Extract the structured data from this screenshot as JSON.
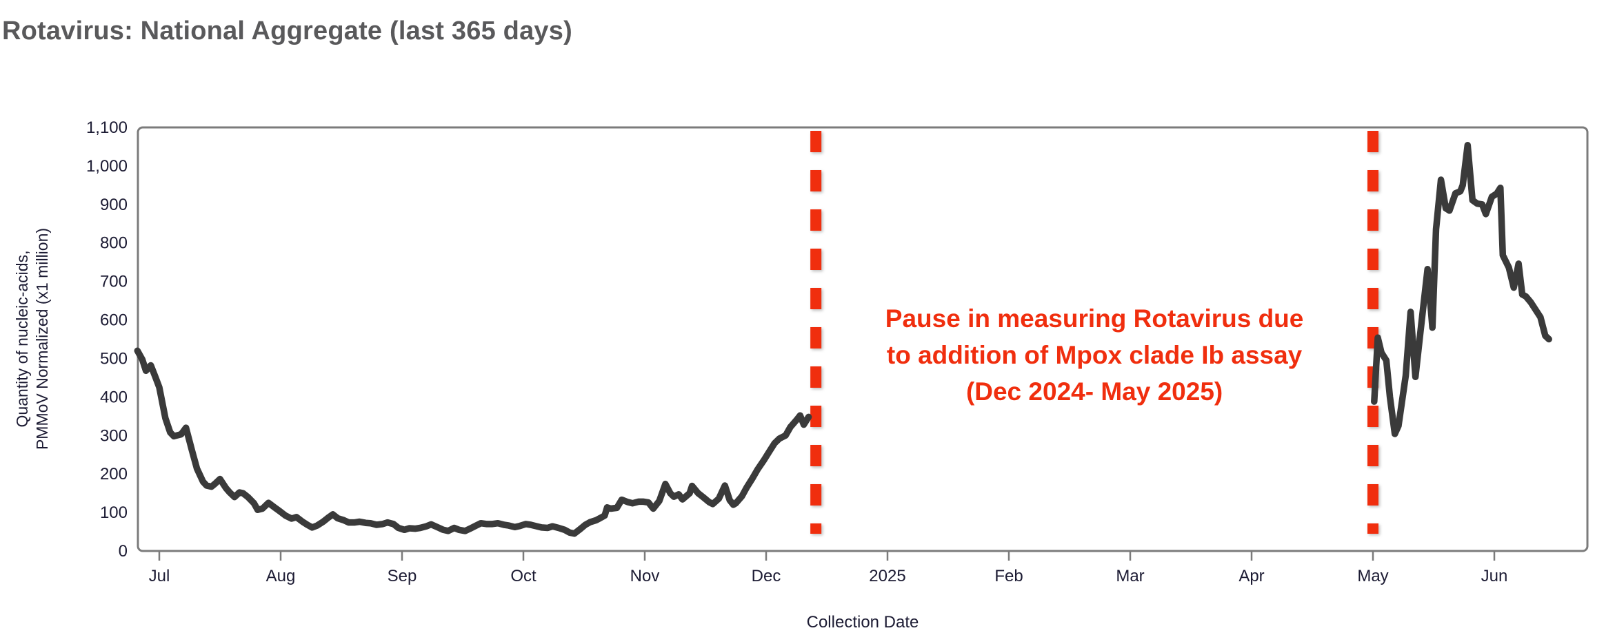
{
  "title": "Rotavirus: National Aggregate (last 365 days)",
  "chart_data": {
    "type": "line",
    "title": "Rotavirus: National Aggregate (last 365 days)",
    "xlabel": "Collection Date",
    "ylabel": "Quantity of nucleic-acids,\nPMMoV Normalized (x1 million)",
    "x_unit": "month index along axis, 0 = Jul 2024 tick, 11 = Jun 2025 tick",
    "ylim": [
      0,
      1100
    ],
    "grid": false,
    "legend": "none",
    "line_color": "#3a3a3a",
    "frame_color": "#7b7b7b",
    "tick_text_color": "#1c1b33",
    "title_color": "#59595b",
    "yticks": {
      "values": [
        0,
        100,
        200,
        300,
        400,
        500,
        600,
        700,
        800,
        900,
        1000,
        1100
      ],
      "labels": [
        "0",
        "100",
        "200",
        "300",
        "400",
        "500",
        "600",
        "700",
        "800",
        "900",
        "1,000",
        "1,100"
      ]
    },
    "xticks": {
      "labels": [
        "Jul",
        "Aug",
        "Sep",
        "Oct",
        "Nov",
        "Dec",
        "2025",
        "Feb",
        "Mar",
        "Apr",
        "May",
        "Jun"
      ]
    },
    "series": [
      {
        "name": "Rotavirus national aggregate",
        "segments": [
          [
            [
              -0.18,
              520
            ],
            [
              -0.14,
              497
            ],
            [
              -0.11,
              468
            ],
            [
              -0.07,
              482
            ],
            [
              -0.03,
              450
            ],
            [
              0.0,
              425
            ],
            [
              0.05,
              345
            ],
            [
              0.09,
              308
            ],
            [
              0.12,
              298
            ],
            [
              0.18,
              303
            ],
            [
              0.22,
              320
            ],
            [
              0.27,
              260
            ],
            [
              0.31,
              214
            ],
            [
              0.36,
              180
            ],
            [
              0.39,
              170
            ],
            [
              0.43,
              167
            ],
            [
              0.46,
              175
            ],
            [
              0.5,
              187
            ],
            [
              0.55,
              163
            ],
            [
              0.58,
              152
            ],
            [
              0.62,
              140
            ],
            [
              0.66,
              152
            ],
            [
              0.69,
              150
            ],
            [
              0.73,
              140
            ],
            [
              0.78,
              124
            ],
            [
              0.81,
              107
            ],
            [
              0.85,
              110
            ],
            [
              0.9,
              125
            ],
            [
              0.95,
              113
            ],
            [
              0.99,
              104
            ],
            [
              1.04,
              92
            ],
            [
              1.09,
              84
            ],
            [
              1.13,
              88
            ],
            [
              1.18,
              76
            ],
            [
              1.22,
              68
            ],
            [
              1.26,
              61
            ],
            [
              1.3,
              66
            ],
            [
              1.35,
              76
            ],
            [
              1.39,
              86
            ],
            [
              1.43,
              95
            ],
            [
              1.47,
              85
            ],
            [
              1.52,
              80
            ],
            [
              1.56,
              74
            ],
            [
              1.61,
              74
            ],
            [
              1.65,
              76
            ],
            [
              1.7,
              73
            ],
            [
              1.74,
              72
            ],
            [
              1.79,
              68
            ],
            [
              1.84,
              70
            ],
            [
              1.88,
              74
            ],
            [
              1.93,
              70
            ],
            [
              1.97,
              60
            ],
            [
              2.02,
              55
            ],
            [
              2.06,
              59
            ],
            [
              2.11,
              58
            ],
            [
              2.15,
              60
            ],
            [
              2.2,
              64
            ],
            [
              2.24,
              69
            ],
            [
              2.29,
              62
            ],
            [
              2.34,
              55
            ],
            [
              2.38,
              52
            ],
            [
              2.43,
              60
            ],
            [
              2.47,
              55
            ],
            [
              2.52,
              52
            ],
            [
              2.56,
              58
            ],
            [
              2.61,
              66
            ],
            [
              2.65,
              72
            ],
            [
              2.7,
              70
            ],
            [
              2.74,
              70
            ],
            [
              2.79,
              72
            ],
            [
              2.84,
              68
            ],
            [
              2.88,
              66
            ],
            [
              2.93,
              62
            ],
            [
              2.97,
              65
            ],
            [
              3.02,
              70
            ],
            [
              3.06,
              68
            ],
            [
              3.11,
              64
            ],
            [
              3.15,
              61
            ],
            [
              3.2,
              60
            ],
            [
              3.24,
              64
            ],
            [
              3.29,
              60
            ],
            [
              3.34,
              55
            ],
            [
              3.38,
              48
            ],
            [
              3.42,
              45
            ],
            [
              3.46,
              55
            ],
            [
              3.51,
              68
            ],
            [
              3.55,
              75
            ],
            [
              3.6,
              80
            ],
            [
              3.63,
              85
            ],
            [
              3.67,
              92
            ],
            [
              3.69,
              113
            ],
            [
              3.72,
              110
            ],
            [
              3.77,
              112
            ],
            [
              3.81,
              133
            ],
            [
              3.86,
              127
            ],
            [
              3.9,
              124
            ],
            [
              3.95,
              128
            ],
            [
              3.99,
              128
            ],
            [
              4.03,
              126
            ],
            [
              4.07,
              110
            ],
            [
              4.12,
              130
            ],
            [
              4.17,
              174
            ],
            [
              4.21,
              150
            ],
            [
              4.24,
              141
            ],
            [
              4.28,
              147
            ],
            [
              4.31,
              134
            ],
            [
              4.37,
              150
            ],
            [
              4.39,
              169
            ],
            [
              4.44,
              150
            ],
            [
              4.48,
              140
            ],
            [
              4.53,
              127
            ],
            [
              4.56,
              122
            ],
            [
              4.61,
              136
            ],
            [
              4.66,
              170
            ],
            [
              4.7,
              132
            ],
            [
              4.73,
              120
            ],
            [
              4.75,
              124
            ],
            [
              4.8,
              142
            ],
            [
              4.84,
              165
            ],
            [
              4.89,
              190
            ],
            [
              4.93,
              212
            ],
            [
              4.98,
              235
            ],
            [
              5.02,
              255
            ],
            [
              5.07,
              280
            ],
            [
              5.11,
              292
            ],
            [
              5.16,
              300
            ],
            [
              5.2,
              322
            ],
            [
              5.25,
              340
            ],
            [
              5.28,
              352
            ],
            [
              5.31,
              328
            ],
            [
              5.35,
              348
            ]
          ],
          [
            [
              10.01,
              388
            ],
            [
              10.04,
              554
            ],
            [
              10.07,
              515
            ],
            [
              10.11,
              495
            ],
            [
              10.14,
              400
            ],
            [
              10.18,
              304
            ],
            [
              10.21,
              325
            ],
            [
              10.27,
              455
            ],
            [
              10.31,
              621
            ],
            [
              10.35,
              452
            ],
            [
              10.39,
              565
            ],
            [
              10.45,
              732
            ],
            [
              10.49,
              580
            ],
            [
              10.52,
              836
            ],
            [
              10.56,
              964
            ],
            [
              10.6,
              890
            ],
            [
              10.63,
              884
            ],
            [
              10.68,
              929
            ],
            [
              10.72,
              934
            ],
            [
              10.74,
              950
            ],
            [
              10.78,
              1054
            ],
            [
              10.82,
              911
            ],
            [
              10.86,
              902
            ],
            [
              10.9,
              900
            ],
            [
              10.93,
              875
            ],
            [
              10.98,
              920
            ],
            [
              11.02,
              928
            ],
            [
              11.05,
              943
            ],
            [
              11.07,
              768
            ],
            [
              11.12,
              736
            ],
            [
              11.16,
              684
            ],
            [
              11.2,
              746
            ],
            [
              11.23,
              666
            ],
            [
              11.26,
              661
            ],
            [
              11.3,
              646
            ],
            [
              11.38,
              607
            ],
            [
              11.42,
              559
            ],
            [
              11.45,
              550
            ]
          ]
        ]
      }
    ],
    "pause_markers": {
      "months": [
        5.41,
        10.0
      ],
      "color": "#f02e0e",
      "style": "thick vertical dashed lines spanning plot height"
    },
    "annotation": {
      "text": "Pause in measuring Rotavirus due\nto addition of Mpox clade Ib assay\n(Dec 2024- May 2025)",
      "color": "#f02e0e"
    }
  }
}
